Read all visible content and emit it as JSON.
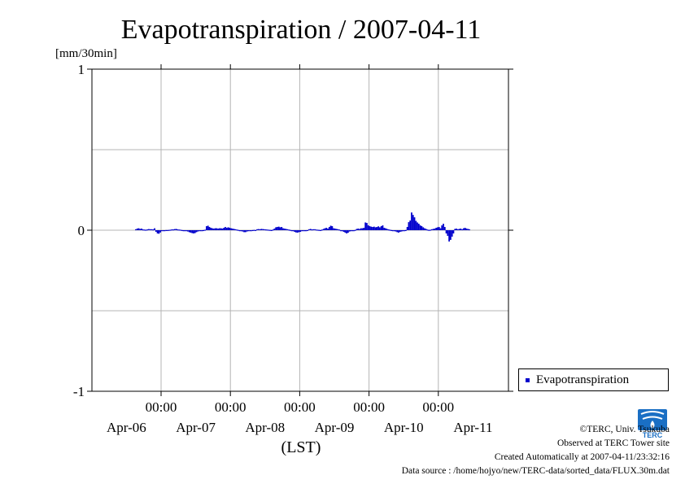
{
  "chart_data": {
    "type": "bar",
    "title": "Evapotranspiration / 2007-04-11",
    "ylabel": "[mm/30min]",
    "xlabel": "(LST)",
    "ylim": [
      -1,
      1
    ],
    "yticks": [
      "1",
      "0",
      "-1"
    ],
    "xtick_time_labels": [
      "00:00",
      "00:00",
      "00:00",
      "00:00",
      "00:00"
    ],
    "xtick_date_labels": [
      "Apr-06",
      "Apr-07",
      "Apr-08",
      "Apr-09",
      "Apr-10",
      "Apr-11"
    ],
    "x_start": "2007-04-05T15:00",
    "interval_minutes": 30,
    "grid": true,
    "legend_position": "right",
    "series": [
      {
        "name": "Evapotranspiration",
        "color": "#0000cc",
        "values": [
          0.006,
          0.01,
          0.012,
          0.008,
          0.01,
          0.005,
          0.004,
          0.003,
          0.005,
          0.007,
          0.006,
          0.006,
          0.005,
          0.012,
          -0.01,
          -0.02,
          -0.022,
          -0.014,
          -0.006,
          -0.003,
          -0.002,
          0.001,
          0.001,
          0.002,
          0.003,
          0.005,
          0.005,
          0.007,
          0.008,
          0.005,
          0.004,
          0.003,
          0.001,
          -0.002,
          -0.004,
          -0.006,
          -0.008,
          -0.012,
          -0.015,
          -0.018,
          -0.02,
          -0.018,
          -0.012,
          -0.008,
          -0.006,
          -0.004,
          -0.002,
          0.001,
          0.003,
          0.025,
          0.028,
          0.02,
          0.015,
          0.012,
          0.01,
          0.012,
          0.012,
          0.01,
          0.012,
          0.012,
          0.01,
          0.015,
          0.02,
          0.015,
          0.018,
          0.015,
          0.012,
          0.01,
          0.008,
          0.006,
          0.004,
          0.002,
          -0.002,
          -0.004,
          -0.008,
          -0.012,
          -0.012,
          -0.008,
          -0.006,
          -0.003,
          -0.002,
          0.001,
          0.002,
          0.001,
          0.006,
          0.007,
          0.006,
          0.008,
          0.007,
          0.006,
          0.005,
          0.004,
          0.003,
          0.002,
          0.001,
          0.004,
          0.01,
          0.018,
          0.02,
          0.022,
          0.018,
          0.02,
          0.012,
          0.01,
          0.008,
          0.006,
          0.004,
          0.002,
          -0.002,
          -0.004,
          -0.01,
          -0.014,
          -0.015,
          -0.012,
          -0.01,
          -0.006,
          -0.004,
          -0.002,
          -0.001,
          0.001,
          0.006,
          0.008,
          0.005,
          0.006,
          0.006,
          0.004,
          0.003,
          0.002,
          0.001,
          0.004,
          0.008,
          0.012,
          0.015,
          0.01,
          0.02,
          0.028,
          0.025,
          0.012,
          0.01,
          0.008,
          0.006,
          0.004,
          -0.003,
          -0.006,
          -0.01,
          -0.015,
          -0.02,
          -0.016,
          -0.008,
          -0.005,
          -0.003,
          -0.002,
          0.002,
          0.008,
          0.01,
          0.008,
          0.012,
          0.012,
          0.015,
          0.048,
          0.045,
          0.03,
          0.025,
          0.022,
          0.02,
          0.022,
          0.018,
          0.02,
          0.024,
          0.018,
          0.025,
          0.03,
          0.015,
          0.012,
          0.008,
          0.005,
          0.003,
          0.001,
          -0.003,
          -0.006,
          -0.008,
          -0.012,
          -0.015,
          -0.01,
          -0.008,
          -0.006,
          -0.004,
          0.001,
          0.02,
          0.05,
          0.06,
          0.11,
          0.095,
          0.08,
          0.058,
          0.048,
          0.04,
          0.03,
          0.025,
          0.018,
          0.012,
          0.008,
          0.004,
          0.002,
          0.003,
          0.006,
          0.008,
          0.01,
          0.015,
          0.018,
          0.02,
          0.012,
          0.03,
          0.04,
          0.02,
          -0.02,
          -0.035,
          -0.07,
          -0.06,
          -0.04,
          -0.02,
          0.008,
          0.01,
          0.006,
          0.008,
          0.01,
          0.006,
          0.012,
          0.015,
          0.01,
          0.008,
          0.006
        ]
      }
    ]
  },
  "legend": {
    "label": "Evapotranspiration",
    "color": "#0000cc"
  },
  "credits": {
    "line1": "©TERC, Univ. Tsukuba",
    "line2": "Observed at TERC Tower site",
    "line3": "Created Automatically at 2007-04-11/23:32:16",
    "line4": "Data source : /home/hojyo/new/TERC-data/sorted_data/FLUX.30m.dat"
  },
  "logo": {
    "text": "TERC",
    "color": "#1a6fc4"
  }
}
